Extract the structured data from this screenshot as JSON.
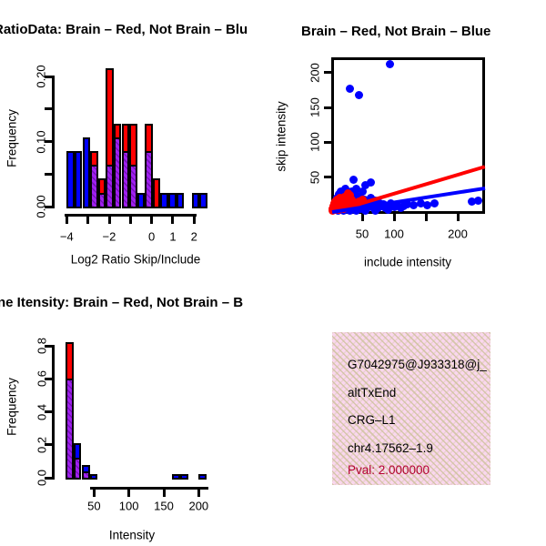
{
  "colors": {
    "red": "#ff0000",
    "blue": "#0000ff",
    "purple": "#a020f0",
    "purple_hatch": "rgba(55,0,95,0.40)",
    "axis": "#000000",
    "info_bg": "#fad7ee",
    "info_pattern": "#cdc29b",
    "pval": "#b30030"
  },
  "chart_data": [
    {
      "id": "ratio-histogram",
      "type": "bar",
      "title": "RatioData: Brain – Red, Not Brain – Blu",
      "xlabel": "Log2 Ratio Skip/Include",
      "ylabel": "Frequency",
      "xlim": [
        -4.3,
        2.8
      ],
      "ylim": [
        0,
        0.22
      ],
      "legend_note": "red = Brain, blue = Not Brain, hatched purple = overlap",
      "xticks": [
        {
          "v": -4,
          "label": "−4"
        },
        {
          "v": -3,
          "label": ""
        },
        {
          "v": -2,
          "label": "−2"
        },
        {
          "v": -1,
          "label": ""
        },
        {
          "v": 0,
          "label": "0"
        },
        {
          "v": 1,
          "label": "1"
        },
        {
          "v": 2,
          "label": "2"
        }
      ],
      "yticks": [
        {
          "v": 0,
          "label": "0.00"
        },
        {
          "v": 0.05,
          "label": ""
        },
        {
          "v": 0.1,
          "label": "0.10"
        },
        {
          "v": 0.15,
          "label": ""
        },
        {
          "v": 0.2,
          "label": "0.20"
        }
      ],
      "bars": [
        {
          "x0": -4.0,
          "x1": -3.63,
          "blue": 0.085
        },
        {
          "x0": -3.63,
          "x1": -3.26,
          "blue": 0.085
        },
        {
          "x0": -3.26,
          "x1": -2.89,
          "blue": 0.106
        },
        {
          "x0": -2.89,
          "x1": -2.53,
          "red": 0.085,
          "overlap": 0.064
        },
        {
          "x0": -2.53,
          "x1": -2.16,
          "red": 0.043,
          "overlap": 0.021
        },
        {
          "x0": -2.16,
          "x1": -1.79,
          "red": 0.213,
          "overlap": 0.064
        },
        {
          "x0": -1.79,
          "x1": -1.42,
          "red": 0.128,
          "overlap": 0.106
        },
        {
          "x0": -1.42,
          "x1": -1.05,
          "red": 0.128,
          "overlap": 0.085
        },
        {
          "x0": -1.05,
          "x1": -0.68,
          "red": 0.128,
          "overlap": 0.064
        },
        {
          "x0": -0.68,
          "x1": -0.32,
          "blue": 0.021
        },
        {
          "x0": -0.32,
          "x1": 0.05,
          "red": 0.128,
          "overlap": 0.085
        },
        {
          "x0": 0.05,
          "x1": 0.42,
          "red": 0.043
        },
        {
          "x0": 0.42,
          "x1": 0.79,
          "blue": 0.021
        },
        {
          "x0": 0.79,
          "x1": 1.16,
          "blue": 0.021
        },
        {
          "x0": 1.16,
          "x1": 1.53,
          "blue": 0.021
        },
        {
          "x0": 1.89,
          "x1": 2.26,
          "blue": 0.021
        },
        {
          "x0": 2.26,
          "x1": 2.63,
          "blue": 0.021
        }
      ]
    },
    {
      "id": "intensity-scatter",
      "type": "scatter",
      "title": "Brain – Red, Not Brain – Blue",
      "xlabel": "include intensity",
      "ylabel": "skip intensity",
      "xlim": [
        0,
        243
      ],
      "ylim": [
        0,
        220
      ],
      "xticks": [
        {
          "v": 50,
          "label": "50"
        },
        {
          "v": 100,
          "label": "100"
        },
        {
          "v": 150,
          "label": ""
        },
        {
          "v": 200,
          "label": "200"
        }
      ],
      "yticks": [
        {
          "v": 50,
          "label": "50"
        },
        {
          "v": 100,
          "label": "100"
        },
        {
          "v": 150,
          "label": "150"
        },
        {
          "v": 200,
          "label": "200"
        }
      ],
      "points_blue": [
        [
          93,
          212
        ],
        [
          30,
          177
        ],
        [
          45,
          168
        ],
        [
          36,
          46
        ],
        [
          55,
          38
        ],
        [
          63,
          42
        ],
        [
          40,
          33
        ],
        [
          50,
          30
        ],
        [
          8,
          6
        ],
        [
          10,
          12
        ],
        [
          11,
          20
        ],
        [
          12,
          4
        ],
        [
          13,
          26
        ],
        [
          14,
          9
        ],
        [
          15,
          16
        ],
        [
          16,
          30
        ],
        [
          17,
          6
        ],
        [
          18,
          22
        ],
        [
          19,
          12
        ],
        [
          20,
          28
        ],
        [
          21,
          5
        ],
        [
          22,
          16
        ],
        [
          23,
          33
        ],
        [
          24,
          9
        ],
        [
          25,
          21
        ],
        [
          26,
          13
        ],
        [
          27,
          28
        ],
        [
          28,
          6
        ],
        [
          29,
          17
        ],
        [
          30,
          10
        ],
        [
          31,
          24
        ],
        [
          32,
          5
        ],
        [
          33,
          14
        ],
        [
          34,
          29
        ],
        [
          35,
          8
        ],
        [
          36,
          19
        ],
        [
          38,
          12
        ],
        [
          39,
          25
        ],
        [
          40,
          6
        ],
        [
          42,
          16
        ],
        [
          44,
          10
        ],
        [
          46,
          22
        ],
        [
          48,
          5
        ],
        [
          50,
          13
        ],
        [
          52,
          8
        ],
        [
          54,
          18
        ],
        [
          56,
          11
        ],
        [
          58,
          6
        ],
        [
          60,
          15
        ],
        [
          62,
          9
        ],
        [
          64,
          20
        ],
        [
          66,
          12
        ],
        [
          68,
          6
        ],
        [
          70,
          16
        ],
        [
          72,
          10
        ],
        [
          75,
          6
        ],
        [
          78,
          13
        ],
        [
          80,
          8
        ],
        [
          83,
          11
        ],
        [
          86,
          6
        ],
        [
          90,
          9
        ],
        [
          95,
          12
        ],
        [
          100,
          7
        ],
        [
          105,
          10
        ],
        [
          110,
          6
        ],
        [
          115,
          9
        ],
        [
          121,
          11
        ],
        [
          131,
          10
        ],
        [
          142,
          12
        ],
        [
          152,
          10
        ],
        [
          163,
          13
        ],
        [
          222,
          15
        ],
        [
          232,
          16
        ],
        [
          12,
          2
        ],
        [
          20,
          2
        ],
        [
          30,
          2
        ],
        [
          40,
          2
        ],
        [
          55,
          2
        ],
        [
          70,
          2
        ],
        [
          90,
          3
        ]
      ],
      "points_red": [
        [
          3,
          2
        ],
        [
          4,
          5
        ],
        [
          5,
          8
        ],
        [
          5,
          3
        ],
        [
          6,
          12
        ],
        [
          7,
          6
        ],
        [
          8,
          15
        ],
        [
          8,
          3
        ],
        [
          9,
          9
        ],
        [
          10,
          18
        ],
        [
          10,
          5
        ],
        [
          11,
          12
        ],
        [
          12,
          7
        ],
        [
          13,
          16
        ],
        [
          13,
          3
        ],
        [
          14,
          10
        ],
        [
          15,
          20
        ],
        [
          16,
          6
        ],
        [
          17,
          13
        ],
        [
          18,
          8
        ],
        [
          19,
          17
        ],
        [
          20,
          4
        ],
        [
          21,
          11
        ],
        [
          22,
          22
        ],
        [
          24,
          8
        ],
        [
          26,
          15
        ],
        [
          28,
          27
        ],
        [
          30,
          24
        ],
        [
          33,
          18
        ],
        [
          36,
          13
        ],
        [
          40,
          10
        ],
        [
          45,
          15
        ],
        [
          50,
          18
        ]
      ],
      "lines": [
        {
          "color": "red",
          "x0": 3,
          "y0": 0,
          "x1": 243,
          "y1": 65
        },
        {
          "color": "blue",
          "x0": 3,
          "y0": 0,
          "x1": 243,
          "y1": 34
        }
      ]
    },
    {
      "id": "gene-intensity-histogram",
      "type": "bar",
      "title": "ne Itensity: Brain – Red, Not Brain – B",
      "xlabel": "Intensity",
      "ylabel": "Frequency",
      "xlim": [
        0,
        230
      ],
      "ylim": [
        0,
        0.85
      ],
      "xticks": [
        {
          "v": 50,
          "label": "50"
        },
        {
          "v": 100,
          "label": "100"
        },
        {
          "v": 150,
          "label": "150"
        },
        {
          "v": 200,
          "label": "200"
        }
      ],
      "yticks": [
        {
          "v": 0,
          "label": "0.0"
        },
        {
          "v": 0.2,
          "label": "0.2"
        },
        {
          "v": 0.4,
          "label": "0.4"
        },
        {
          "v": 0.6,
          "label": "0.6"
        },
        {
          "v": 0.8,
          "label": "0.8"
        }
      ],
      "bars": [
        {
          "x0": 9,
          "x1": 21,
          "red": 0.82,
          "overlap": 0.6
        },
        {
          "x0": 21,
          "x1": 32,
          "blue": 0.21,
          "overlap": 0.12
        },
        {
          "x0": 32,
          "x1": 44,
          "blue": 0.08,
          "overlap": 0.04
        },
        {
          "x0": 44,
          "x1": 55,
          "blue": 0.02
        },
        {
          "x0": 162,
          "x1": 173,
          "blue": 0.02
        },
        {
          "x0": 173,
          "x1": 185,
          "blue": 0.02
        },
        {
          "x0": 199,
          "x1": 211,
          "blue": 0.02
        }
      ]
    }
  ],
  "info_box": {
    "lines": [
      "G7042975@J933318@j_",
      "altTxEnd",
      "CRG–L1",
      "chr4.17562–1.9"
    ],
    "pval": "Pval: 2.000000"
  }
}
